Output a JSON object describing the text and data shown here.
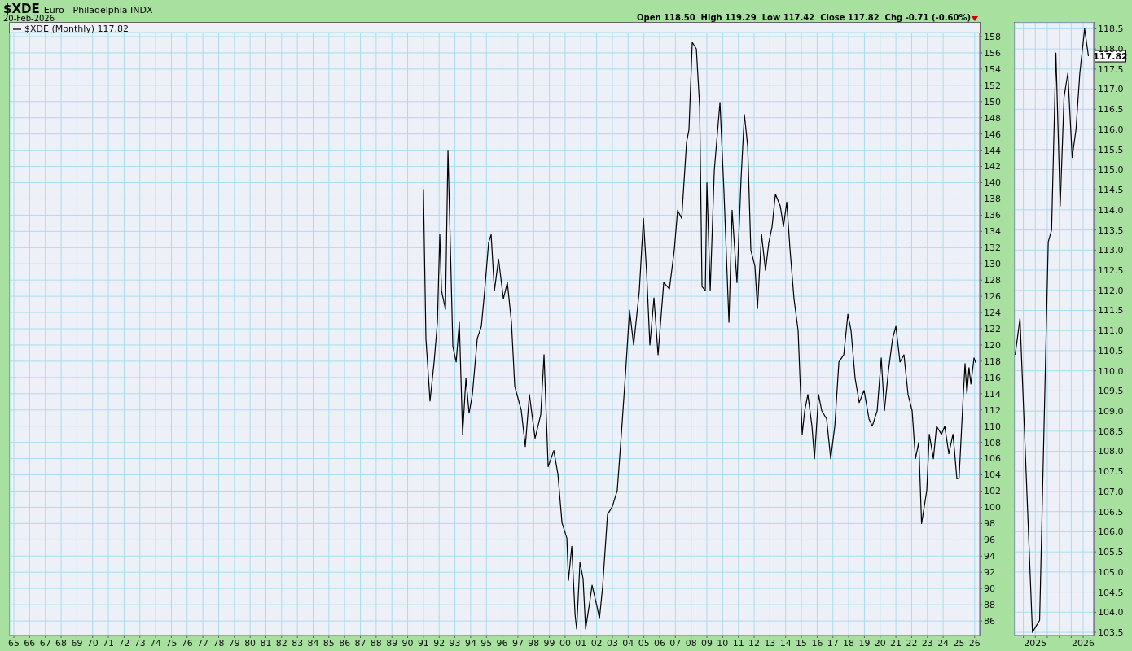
{
  "chart_data": [
    {
      "type": "line",
      "title": "$XDE",
      "subtitle": "Euro - Philadelphia INDX",
      "annotations": [
        "20-Feb-2026",
        "Open 118.50  High 119.29  Low 117.42  Close 117.82  Chg -0.71 (-0.60%)"
      ],
      "x": [
        1991.0,
        1991.16,
        1991.42,
        1991.68,
        1991.89,
        1992.04,
        1992.15,
        1992.4,
        1992.56,
        1992.87,
        1993.08,
        1993.28,
        1993.49,
        1993.7,
        1993.9,
        1994.11,
        1994.42,
        1994.68,
        1994.89,
        1995.14,
        1995.3,
        1995.51,
        1995.77,
        1996.08,
        1996.33,
        1996.59,
        1996.8,
        1997.21,
        1997.47,
        1997.73,
        1998.09,
        1998.45,
        1998.66,
        1998.92,
        1999.28,
        1999.54,
        1999.8,
        2000.11,
        2000.21,
        2000.42,
        2000.63,
        2000.73,
        2000.94,
        2001.14,
        2001.3,
        2001.56,
        2001.71,
        2002.02,
        2002.18,
        2002.38,
        2002.69,
        2003.0,
        2003.31,
        2003.57,
        2003.83,
        2004.09,
        2004.35,
        2004.71,
        2004.97,
        2005.18,
        2005.38,
        2005.64,
        2005.9,
        2006.26,
        2006.62,
        2006.93,
        2007.14,
        2007.4,
        2007.71,
        2007.86,
        2008.07,
        2008.33,
        2008.54,
        2008.69,
        2008.9,
        2009.0,
        2009.21,
        2009.47,
        2009.83,
        2010.09,
        2010.4,
        2010.6,
        2010.91,
        2011.17,
        2011.38,
        2011.59,
        2011.79,
        2012.05,
        2012.21,
        2012.47,
        2012.72,
        2012.93,
        2013.14,
        2013.35,
        2013.66,
        2013.86,
        2014.07,
        2014.28,
        2014.53,
        2014.79,
        2015.05,
        2015.21,
        2015.41,
        2015.67,
        2015.83,
        2016.09,
        2016.29,
        2016.6,
        2016.86,
        2017.12,
        2017.38,
        2017.69,
        2017.95,
        2018.15,
        2018.41,
        2018.67,
        2018.98,
        2019.29,
        2019.5,
        2019.81,
        2020.07,
        2020.27,
        2020.53,
        2020.79,
        2021.0,
        2021.26,
        2021.51,
        2021.77,
        2022.03,
        2022.24,
        2022.45,
        2022.63,
        2022.96,
        2023.12,
        2023.38,
        2023.58,
        2023.89,
        2024.1,
        2024.36,
        2024.62,
        2024.72,
        2024.87,
        2025.01,
        2025.26,
        2025.39,
        2025.51,
        2025.64,
        2025.76,
        2025.96,
        2026.07
      ],
      "series": [
        {
          "name": "$XDE (Monthly) 117.82",
          "color": "#000000",
          "values": [
            139.2,
            120.8,
            113.1,
            117.9,
            122.8,
            133.6,
            126.7,
            124.4,
            144.0,
            119.8,
            117.9,
            122.8,
            109.0,
            115.9,
            111.6,
            113.9,
            120.8,
            122.3,
            126.7,
            132.6,
            133.6,
            126.7,
            130.6,
            125.7,
            127.7,
            122.8,
            114.9,
            112.0,
            107.5,
            113.9,
            108.5,
            111.4,
            118.8,
            105.0,
            107.0,
            104.1,
            98.1,
            96.2,
            91.0,
            95.2,
            86.8,
            85.0,
            93.2,
            91.2,
            85.0,
            88.3,
            90.4,
            87.8,
            86.3,
            90.2,
            99.1,
            100.1,
            102.1,
            109.0,
            116.4,
            124.3,
            120.0,
            126.7,
            135.6,
            128.7,
            120.0,
            125.8,
            118.8,
            127.7,
            126.9,
            131.7,
            136.6,
            135.6,
            145.0,
            146.5,
            157.3,
            156.5,
            149.4,
            127.2,
            126.7,
            140.0,
            126.7,
            141.5,
            149.9,
            138.6,
            122.8,
            136.6,
            127.7,
            140.5,
            148.4,
            144.5,
            131.7,
            129.7,
            124.5,
            133.6,
            129.2,
            132.6,
            134.6,
            138.6,
            137.1,
            134.6,
            137.6,
            131.7,
            125.7,
            121.8,
            109.0,
            111.9,
            113.9,
            110.0,
            106.0,
            113.9,
            111.9,
            110.9,
            106.0,
            110.0,
            117.9,
            118.8,
            123.8,
            121.8,
            115.9,
            112.9,
            114.4,
            110.9,
            110.0,
            111.9,
            118.4,
            111.9,
            116.9,
            120.8,
            122.3,
            117.9,
            118.8,
            113.9,
            111.9,
            106.0,
            108.0,
            98.0,
            102.1,
            109.0,
            106.0,
            110.0,
            109.0,
            110.0,
            106.6,
            109.0,
            107.0,
            103.5,
            103.6,
            113.2,
            117.7,
            114.0,
            117.2,
            115.2,
            118.4,
            117.8
          ]
        }
      ],
      "xlim": [
        1964.74,
        2026.32
      ],
      "xticks": [
        {
          "value": 1965,
          "label": "65"
        },
        {
          "value": 1966,
          "label": "66"
        },
        {
          "value": 1967,
          "label": "67"
        },
        {
          "value": 1968,
          "label": "68"
        },
        {
          "value": 1969,
          "label": "69"
        },
        {
          "value": 1970,
          "label": "70"
        },
        {
          "value": 1971,
          "label": "71"
        },
        {
          "value": 1972,
          "label": "72"
        },
        {
          "value": 1973,
          "label": "73"
        },
        {
          "value": 1974,
          "label": "74"
        },
        {
          "value": 1975,
          "label": "75"
        },
        {
          "value": 1976,
          "label": "76"
        },
        {
          "value": 1977,
          "label": "77"
        },
        {
          "value": 1978,
          "label": "78"
        },
        {
          "value": 1979,
          "label": "79"
        },
        {
          "value": 1980,
          "label": "80"
        },
        {
          "value": 1981,
          "label": "81"
        },
        {
          "value": 1982,
          "label": "82"
        },
        {
          "value": 1983,
          "label": "83"
        },
        {
          "value": 1984,
          "label": "84"
        },
        {
          "value": 1985,
          "label": "85"
        },
        {
          "value": 1986,
          "label": "86"
        },
        {
          "value": 1987,
          "label": "87"
        },
        {
          "value": 1988,
          "label": "88"
        },
        {
          "value": 1989,
          "label": "89"
        },
        {
          "value": 1990,
          "label": "90"
        },
        {
          "value": 1991,
          "label": "91"
        },
        {
          "value": 1992,
          "label": "92"
        },
        {
          "value": 1993,
          "label": "93"
        },
        {
          "value": 1994,
          "label": "94"
        },
        {
          "value": 1995,
          "label": "95"
        },
        {
          "value": 1996,
          "label": "96"
        },
        {
          "value": 1997,
          "label": "97"
        },
        {
          "value": 1998,
          "label": "98"
        },
        {
          "value": 1999,
          "label": "99"
        },
        {
          "value": 2000,
          "label": "00"
        },
        {
          "value": 2001,
          "label": "01"
        },
        {
          "value": 2002,
          "label": "02"
        },
        {
          "value": 2003,
          "label": "03"
        },
        {
          "value": 2004,
          "label": "04"
        },
        {
          "value": 2005,
          "label": "05"
        },
        {
          "value": 2006,
          "label": "06"
        },
        {
          "value": 2007,
          "label": "07"
        },
        {
          "value": 2008,
          "label": "08"
        },
        {
          "value": 2009,
          "label": "09"
        },
        {
          "value": 2010,
          "label": "10"
        },
        {
          "value": 2011,
          "label": "11"
        },
        {
          "value": 2012,
          "label": "12"
        },
        {
          "value": 2013,
          "label": "13"
        },
        {
          "value": 2014,
          "label": "14"
        },
        {
          "value": 2015,
          "label": "15"
        },
        {
          "value": 2016,
          "label": "16"
        },
        {
          "value": 2017,
          "label": "17"
        },
        {
          "value": 2018,
          "label": "18"
        },
        {
          "value": 2019,
          "label": "19"
        },
        {
          "value": 2020,
          "label": "20"
        },
        {
          "value": 2021,
          "label": "21"
        },
        {
          "value": 2022,
          "label": "22"
        },
        {
          "value": 2023,
          "label": "23"
        },
        {
          "value": 2024,
          "label": "24"
        },
        {
          "value": 2025,
          "label": "25"
        },
        {
          "value": 2026,
          "label": "26"
        }
      ],
      "ylim": [
        84.2,
        158.5
      ],
      "yticks": [
        86,
        88,
        90,
        92,
        94,
        96,
        98,
        100,
        102,
        104,
        106,
        108,
        110,
        112,
        114,
        116,
        118,
        120,
        122,
        124,
        126,
        128,
        130,
        132,
        134,
        136,
        138,
        140,
        142,
        144,
        146,
        148,
        150,
        152,
        154,
        156,
        158
      ],
      "grid": true,
      "legend": "top left"
    },
    {
      "type": "line",
      "annotations": [
        {
          "text": "117.82",
          "x": 2026.11,
          "y": 117.82
        }
      ],
      "x": [
        2024.58,
        2024.68,
        2024.94,
        2025.09,
        2025.27,
        2025.34,
        2025.43,
        2025.52,
        2025.6,
        2025.68,
        2025.77,
        2025.85,
        2025.93,
        2026.03,
        2026.11
      ],
      "series": [
        {
          "color": "#000000",
          "values": [
            110.4,
            111.3,
            103.5,
            103.8,
            113.2,
            113.5,
            117.9,
            114.1,
            116.8,
            117.4,
            115.3,
            116.0,
            117.4,
            118.5,
            117.82
          ]
        }
      ],
      "xlim": [
        2024.57,
        2026.22
      ],
      "xticks": [
        {
          "value": 2024.75,
          "label": null
        },
        2025,
        {
          "value": 2025.25,
          "label": null
        },
        {
          "value": 2025.5,
          "label": null
        },
        {
          "value": 2025.75,
          "label": null
        },
        2026
      ],
      "ylim": [
        103.42,
        118.65
      ],
      "yticks": [
        103.5,
        {
          "value": 104,
          "label": "104.0"
        },
        104.5,
        {
          "value": 105,
          "label": "105.0"
        },
        105.5,
        {
          "value": 106,
          "label": "106.0"
        },
        106.5,
        {
          "value": 107,
          "label": "107.0"
        },
        107.5,
        {
          "value": 108,
          "label": "108.0"
        },
        108.5,
        {
          "value": 109,
          "label": "109.0"
        },
        109.5,
        {
          "value": 110,
          "label": "110.0"
        },
        110.5,
        {
          "value": 111,
          "label": "111.0"
        },
        111.5,
        {
          "value": 112,
          "label": "112.0"
        },
        112.5,
        {
          "value": 113,
          "label": "113.0"
        },
        113.5,
        {
          "value": 114,
          "label": "114.0"
        },
        114.5,
        {
          "value": 115,
          "label": "115.0"
        },
        115.5,
        {
          "value": 116,
          "label": "116.0"
        },
        116.5,
        {
          "value": 117,
          "label": "117.0"
        },
        117.5,
        {
          "value": 118,
          "label": "118.0"
        },
        118.5
      ],
      "grid": true
    }
  ]
}
